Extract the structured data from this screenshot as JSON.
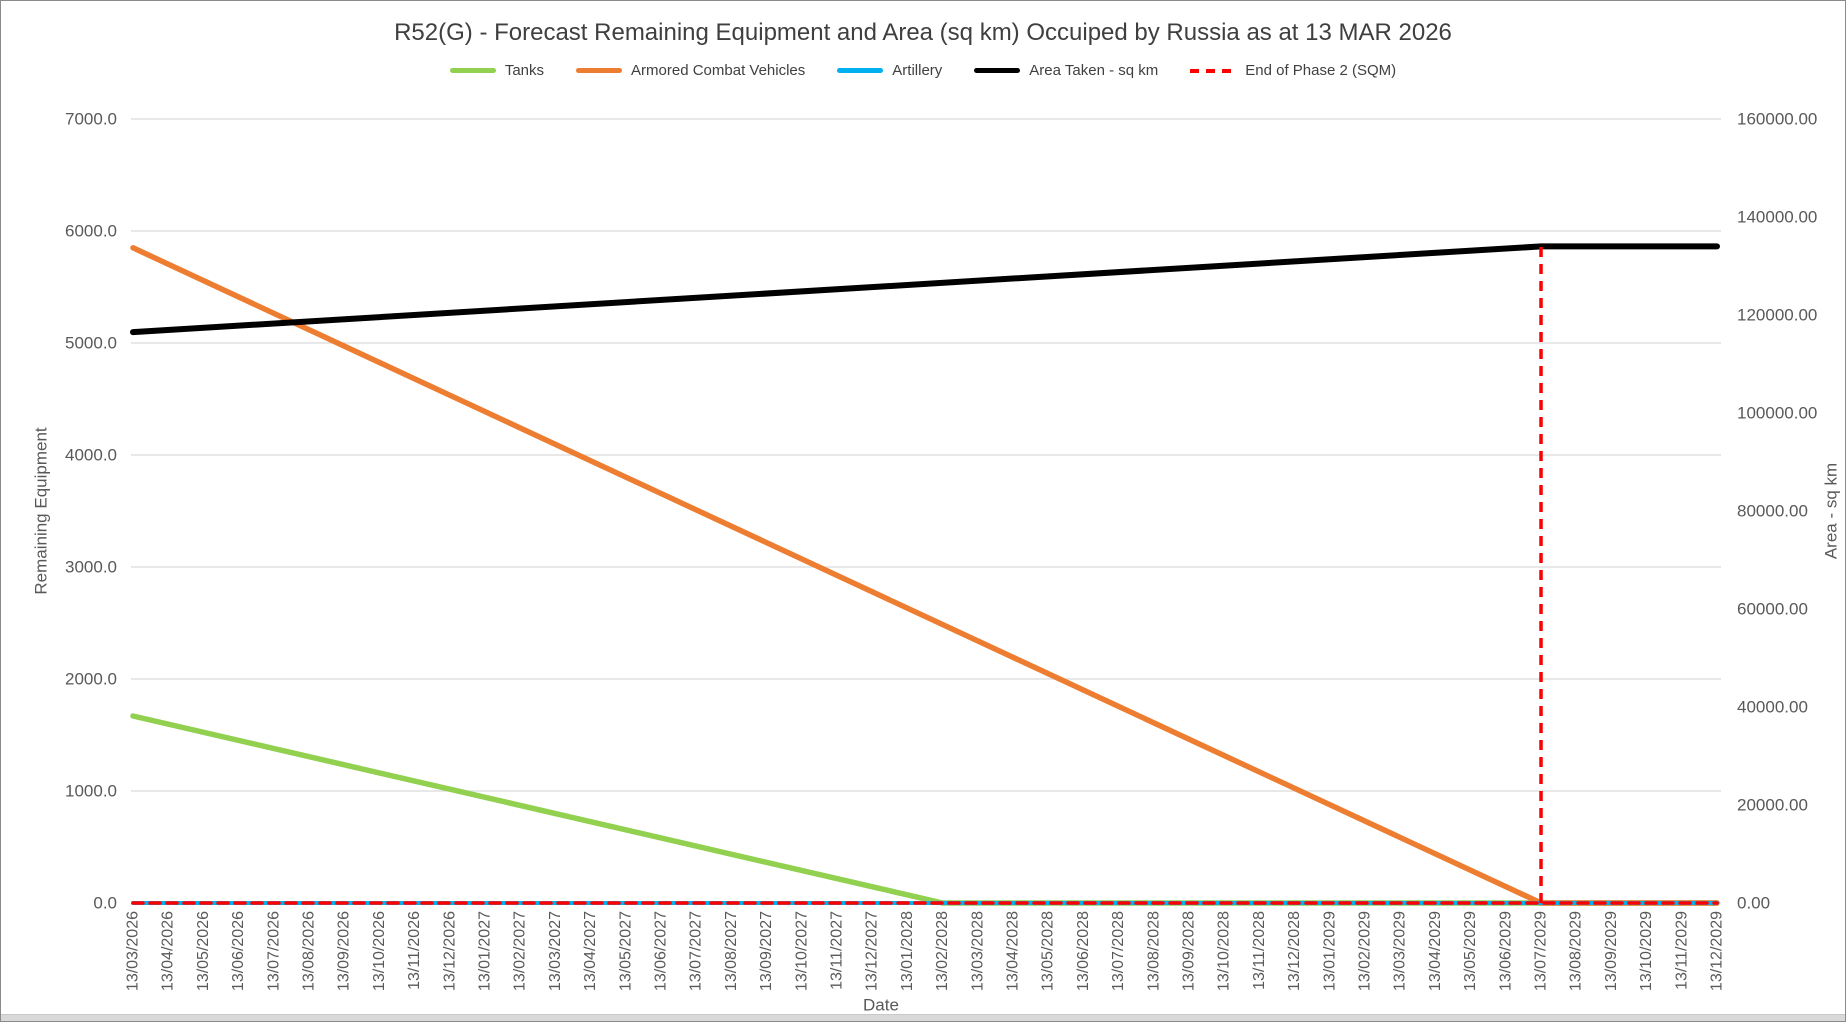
{
  "frame": {
    "border_color": "#8a8a8a",
    "bottom_strip_color": "#d9d9d9"
  },
  "chart_data": {
    "type": "line",
    "title": "R52(G) - Forecast Remaining Equipment and Area (sq km) Occuiped by Russia as at 13 MAR 2026",
    "legend_position": "top",
    "grid": "horizontal",
    "gridline_color": "#d9d9d9",
    "tick_label_color": "#595959",
    "title_color": "#3f3f3f",
    "legend_text_color": "#404040",
    "x_axis": {
      "title": "Date",
      "categories": [
        "13/03/2026",
        "13/04/2026",
        "13/05/2026",
        "13/06/2026",
        "13/07/2026",
        "13/08/2026",
        "13/09/2026",
        "13/10/2026",
        "13/11/2026",
        "13/12/2026",
        "13/01/2027",
        "13/02/2027",
        "13/03/2027",
        "13/04/2027",
        "13/05/2027",
        "13/06/2027",
        "13/07/2027",
        "13/08/2027",
        "13/09/2027",
        "13/10/2027",
        "13/11/2027",
        "13/12/2027",
        "13/01/2028",
        "13/02/2028",
        "13/03/2028",
        "13/04/2028",
        "13/05/2028",
        "13/06/2028",
        "13/07/2028",
        "13/08/2028",
        "13/09/2028",
        "13/10/2028",
        "13/11/2028",
        "13/12/2028",
        "13/01/2029",
        "13/02/2029",
        "13/03/2029",
        "13/04/2029",
        "13/05/2029",
        "13/06/2029",
        "13/07/2029",
        "13/08/2029",
        "13/09/2029",
        "13/10/2029",
        "13/11/2029",
        "13/12/2029"
      ]
    },
    "y_axis_left": {
      "title": "Remaining Equipment",
      "min": 0,
      "max": 7000,
      "step": 1000,
      "tick_labels": [
        "0.0",
        "1000.0",
        "2000.0",
        "3000.0",
        "4000.0",
        "5000.0",
        "6000.0",
        "7000.0"
      ]
    },
    "y_axis_right": {
      "title": "Area - sq km",
      "min": 0,
      "max": 160000,
      "step": 20000,
      "tick_labels": [
        "0.00",
        "20000.00",
        "40000.00",
        "60000.00",
        "80000.00",
        "100000.00",
        "120000.00",
        "140000.00",
        "160000.00"
      ]
    },
    "series": [
      {
        "name": "Tanks",
        "color": "#92D050",
        "axis": "left",
        "line_style": "solid",
        "points": [
          {
            "date": "13/03/2026",
            "value": 1670
          },
          {
            "date": "13/02/2028",
            "value": 0
          },
          {
            "date": "13/12/2029",
            "value": 0
          }
        ]
      },
      {
        "name": "Armored Combat Vehicles",
        "color": "#ED7D31",
        "axis": "left",
        "line_style": "solid",
        "points": [
          {
            "date": "13/03/2026",
            "value": 5850
          },
          {
            "date": "13/07/2029",
            "value": 0
          },
          {
            "date": "13/12/2029",
            "value": 0
          }
        ]
      },
      {
        "name": "Artillery",
        "color": "#00B0F0",
        "axis": "left",
        "line_style": "solid",
        "points": [
          {
            "date": "13/03/2026",
            "value": 0
          },
          {
            "date": "13/12/2029",
            "value": 0
          }
        ]
      },
      {
        "name": "Area Taken - sq km",
        "color": "#000000",
        "axis": "right",
        "line_style": "solid",
        "points": [
          {
            "date": "13/03/2026",
            "value": 116500
          },
          {
            "date": "13/07/2029",
            "value": 134000
          },
          {
            "date": "13/12/2029",
            "value": 134000
          }
        ]
      },
      {
        "name": "End of Phase 2 (SQM)",
        "color": "#FF0000",
        "axis": "right",
        "line_style": "dashed",
        "points": [
          {
            "date": "13/03/2026",
            "value": 0
          },
          {
            "date": "13/12/2029",
            "value": 0
          }
        ],
        "spike": {
          "date": "13/07/2029",
          "value": 134000
        }
      }
    ]
  }
}
